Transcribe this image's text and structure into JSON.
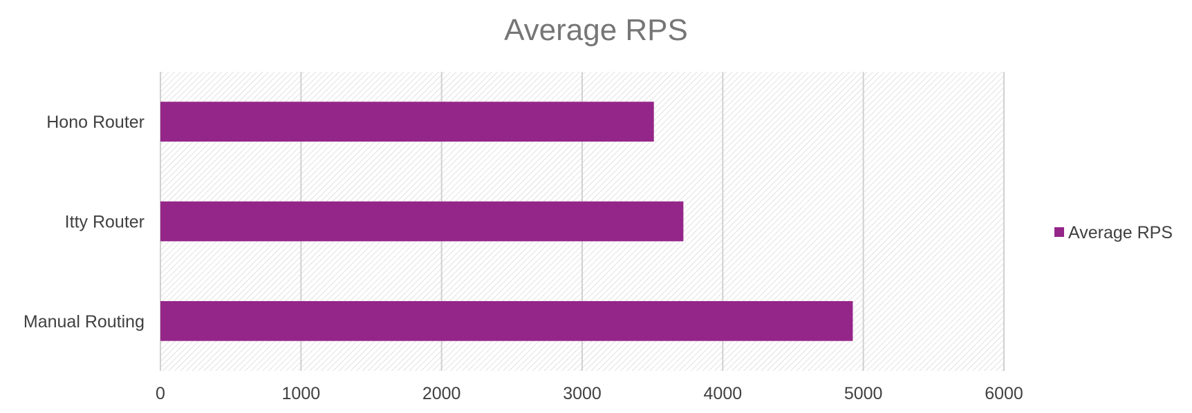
{
  "chart_data": {
    "type": "bar",
    "orientation": "horizontal",
    "title": "Average RPS",
    "categories": [
      "Hono Router",
      "Itty Router",
      "Manual Routing"
    ],
    "series": [
      {
        "name": "Average RPS",
        "values": [
          3510,
          3720,
          4925
        ],
        "color": "#952689"
      }
    ],
    "xlabel": "",
    "ylabel": "",
    "xlim": [
      0,
      6000
    ],
    "xticks": [
      0,
      1000,
      2000,
      3000,
      4000,
      5000,
      6000
    ],
    "grid": true,
    "plot_background": "diagonal-hatch",
    "legend": "right"
  }
}
